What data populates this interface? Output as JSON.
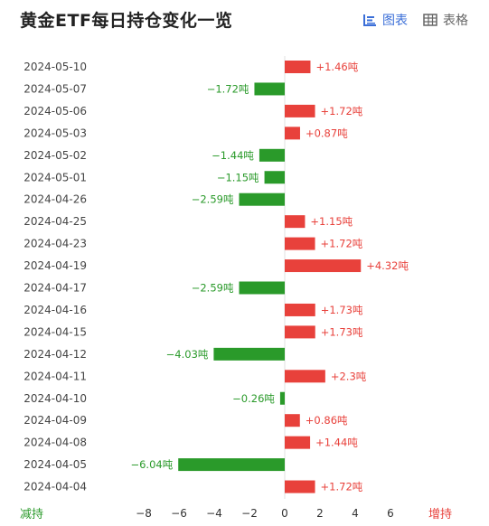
{
  "title": "黄金ETF每日持仓变化一览",
  "view_toggle": {
    "chart_label": "图表",
    "table_label": "表格",
    "chart_icon": "bar-chart-icon",
    "table_icon": "table-icon",
    "active": "chart"
  },
  "legend": {
    "decrease_label": "减持",
    "increase_label": "增持"
  },
  "colors": {
    "increase": "#e8413b",
    "decrease": "#2a9a2a",
    "accent": "#3b6fd8"
  },
  "chart_data": {
    "type": "bar",
    "orientation": "horizontal",
    "unit": "吨",
    "categories": [
      "2024-05-10",
      "2024-05-07",
      "2024-05-06",
      "2024-05-03",
      "2024-05-02",
      "2024-05-01",
      "2024-04-26",
      "2024-04-25",
      "2024-04-23",
      "2024-04-19",
      "2024-04-17",
      "2024-04-16",
      "2024-04-15",
      "2024-04-12",
      "2024-04-11",
      "2024-04-10",
      "2024-04-09",
      "2024-04-08",
      "2024-04-05",
      "2024-04-04"
    ],
    "values": [
      1.46,
      -1.72,
      1.72,
      0.87,
      -1.44,
      -1.15,
      -2.59,
      1.15,
      1.72,
      4.32,
      -2.59,
      1.73,
      1.73,
      -4.03,
      2.3,
      -0.26,
      0.86,
      1.44,
      -6.04,
      1.72
    ],
    "labels": [
      "+1.46吨",
      "−1.72吨",
      "+1.72吨",
      "+0.87吨",
      "−1.44吨",
      "−1.15吨",
      "−2.59吨",
      "+1.15吨",
      "+1.72吨",
      "+4.32吨",
      "−2.59吨",
      "+1.73吨",
      "+1.73吨",
      "−4.03吨",
      "+2.3吨",
      "−0.26吨",
      "+0.86吨",
      "+1.44吨",
      "−6.04吨",
      "+1.72吨"
    ],
    "x_ticks": [
      "−8",
      "−6",
      "−4",
      "−2",
      "0",
      "2",
      "4",
      "6"
    ],
    "x_tick_values": [
      -8,
      -6,
      -4,
      -2,
      0,
      2,
      4,
      6
    ],
    "xlim": [
      -8,
      6
    ],
    "grid": false,
    "legend": "none",
    "xlabel": "",
    "ylabel": ""
  }
}
